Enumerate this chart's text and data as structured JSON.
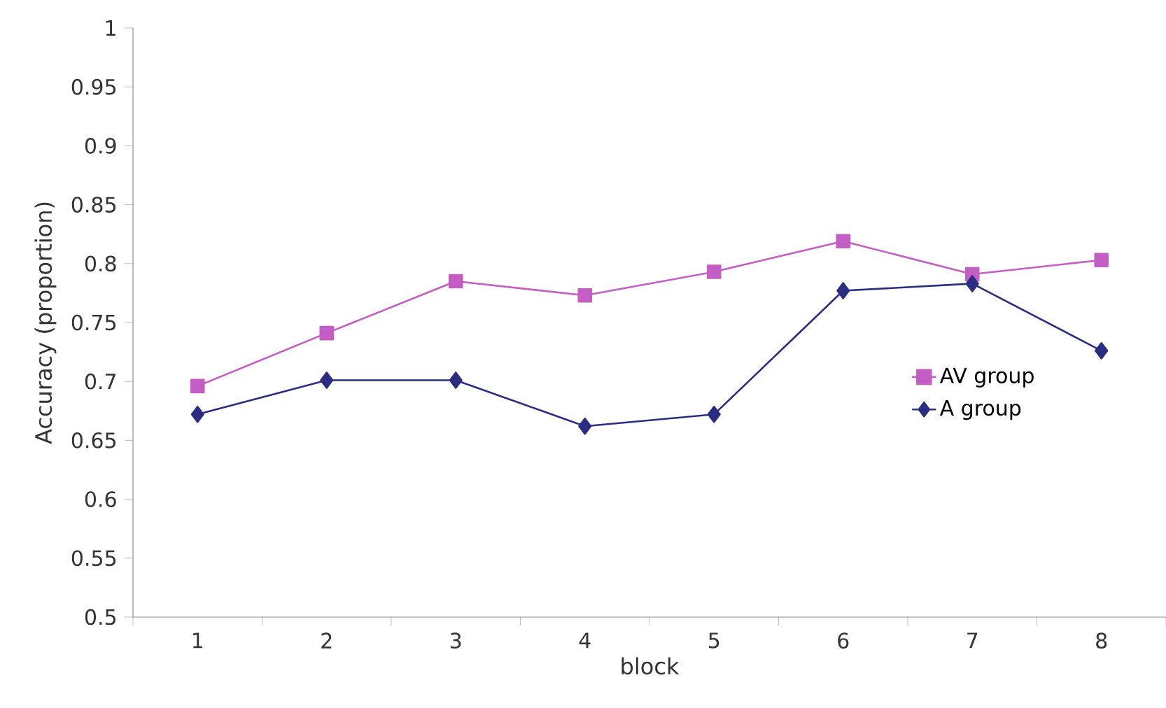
{
  "chart_data": {
    "type": "line",
    "xlabel": "block",
    "ylabel": "Accuracy (proportion)",
    "categories": [
      "1",
      "2",
      "3",
      "4",
      "5",
      "6",
      "7",
      "8"
    ],
    "series": [
      {
        "name": "AV group",
        "color": "#c45ec4",
        "marker": "square",
        "values": [
          0.696,
          0.741,
          0.785,
          0.773,
          0.793,
          0.819,
          0.791,
          0.803
        ]
      },
      {
        "name": "A group",
        "color": "#2b2d83",
        "marker": "diamond",
        "values": [
          0.672,
          0.701,
          0.701,
          0.662,
          0.672,
          0.777,
          0.783,
          0.726
        ]
      }
    ],
    "ylim": [
      0.5,
      1
    ],
    "yticks": [
      0.5,
      0.55,
      0.6,
      0.65,
      0.7,
      0.75,
      0.8,
      0.85,
      0.9,
      0.95,
      1
    ],
    "grid": false,
    "legend": "right",
    "line_style": "solid"
  }
}
